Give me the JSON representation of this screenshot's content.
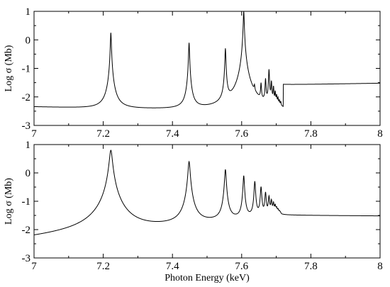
{
  "chart_data": [
    {
      "type": "line",
      "title": "",
      "xlabel": "",
      "ylabel": "Log σ (Mb)",
      "xlim": [
        7.0,
        8.0
      ],
      "ylim": [
        -3,
        1
      ],
      "x_ticks": [
        7.0,
        7.2,
        7.4,
        7.6,
        7.8,
        8.0
      ],
      "x_tick_labels": [
        "7",
        "7.2",
        "7.4",
        "7.6",
        "7.8",
        "8"
      ],
      "y_ticks": [
        -3,
        -2,
        -1,
        0,
        1
      ],
      "y_tick_labels": [
        "-3",
        "-2",
        "-1",
        "0",
        "1"
      ],
      "grid": false,
      "legend": "none",
      "color": "#000000",
      "series": [
        {
          "background_points": [
            [
              7.0,
              -2.35
            ],
            [
              7.215,
              -2.42
            ],
            [
              7.72,
              -2.5
            ],
            [
              7.72,
              -1.58
            ],
            [
              8.0,
              -1.52
            ]
          ],
          "resonances": [
            {
              "energy": 7.222,
              "peak": 0.25
            },
            {
              "energy": 7.448,
              "peak": -0.1
            },
            {
              "energy": 7.553,
              "peak": -0.3
            },
            {
              "energy": 7.606,
              "peak": 1.0
            },
            {
              "energy": 7.637,
              "peak": -1.9
            },
            {
              "energy": 7.656,
              "peak": -1.6
            },
            {
              "energy": 7.669,
              "peak": -1.4
            },
            {
              "energy": 7.679,
              "peak": -1.05
            },
            {
              "energy": 7.686,
              "peak": -1.5
            },
            {
              "energy": 7.692,
              "peak": -1.7
            },
            {
              "energy": 7.697,
              "peak": -1.9
            },
            {
              "energy": 7.701,
              "peak": -2.05
            },
            {
              "energy": 7.705,
              "peak": -2.15
            },
            {
              "energy": 7.709,
              "peak": -2.25
            },
            {
              "energy": 7.713,
              "peak": -2.3
            }
          ]
        }
      ]
    },
    {
      "type": "line",
      "title": "",
      "xlabel": "Photon Energy (keV)",
      "ylabel": "Log σ (Mb)",
      "xlim": [
        7.0,
        8.0
      ],
      "ylim": [
        -3,
        1
      ],
      "x_ticks": [
        7.0,
        7.2,
        7.4,
        7.6,
        7.8,
        8.0
      ],
      "x_tick_labels": [
        "7",
        "7.2",
        "7.4",
        "7.6",
        "7.8",
        "8"
      ],
      "y_ticks": [
        -3,
        -2,
        -1,
        0,
        1
      ],
      "y_tick_labels": [
        "-3",
        "-2",
        "-1",
        "0",
        "1"
      ],
      "grid": false,
      "legend": "none",
      "color": "#000000",
      "series": [
        {
          "background_points": [
            [
              7.0,
              -2.35
            ],
            [
              7.72,
              -1.5
            ],
            [
              8.0,
              -1.52
            ]
          ],
          "resonances": [
            {
              "energy": 7.222,
              "peak": 0.8
            },
            {
              "energy": 7.448,
              "peak": 0.4
            },
            {
              "energy": 7.553,
              "peak": 0.12
            },
            {
              "energy": 7.606,
              "peak": -0.1
            },
            {
              "energy": 7.638,
              "peak": -0.3
            },
            {
              "energy": 7.656,
              "peak": -0.5
            },
            {
              "energy": 7.669,
              "peak": -0.7
            },
            {
              "energy": 7.679,
              "peak": -0.85
            },
            {
              "energy": 7.686,
              "peak": -1.0
            },
            {
              "energy": 7.692,
              "peak": -1.1
            },
            {
              "energy": 7.697,
              "peak": -1.2
            },
            {
              "energy": 7.701,
              "peak": -1.3
            },
            {
              "energy": 7.705,
              "peak": -1.35
            },
            {
              "energy": 7.709,
              "peak": -1.4
            },
            {
              "energy": 7.712,
              "peak": -1.45
            }
          ]
        }
      ]
    }
  ]
}
